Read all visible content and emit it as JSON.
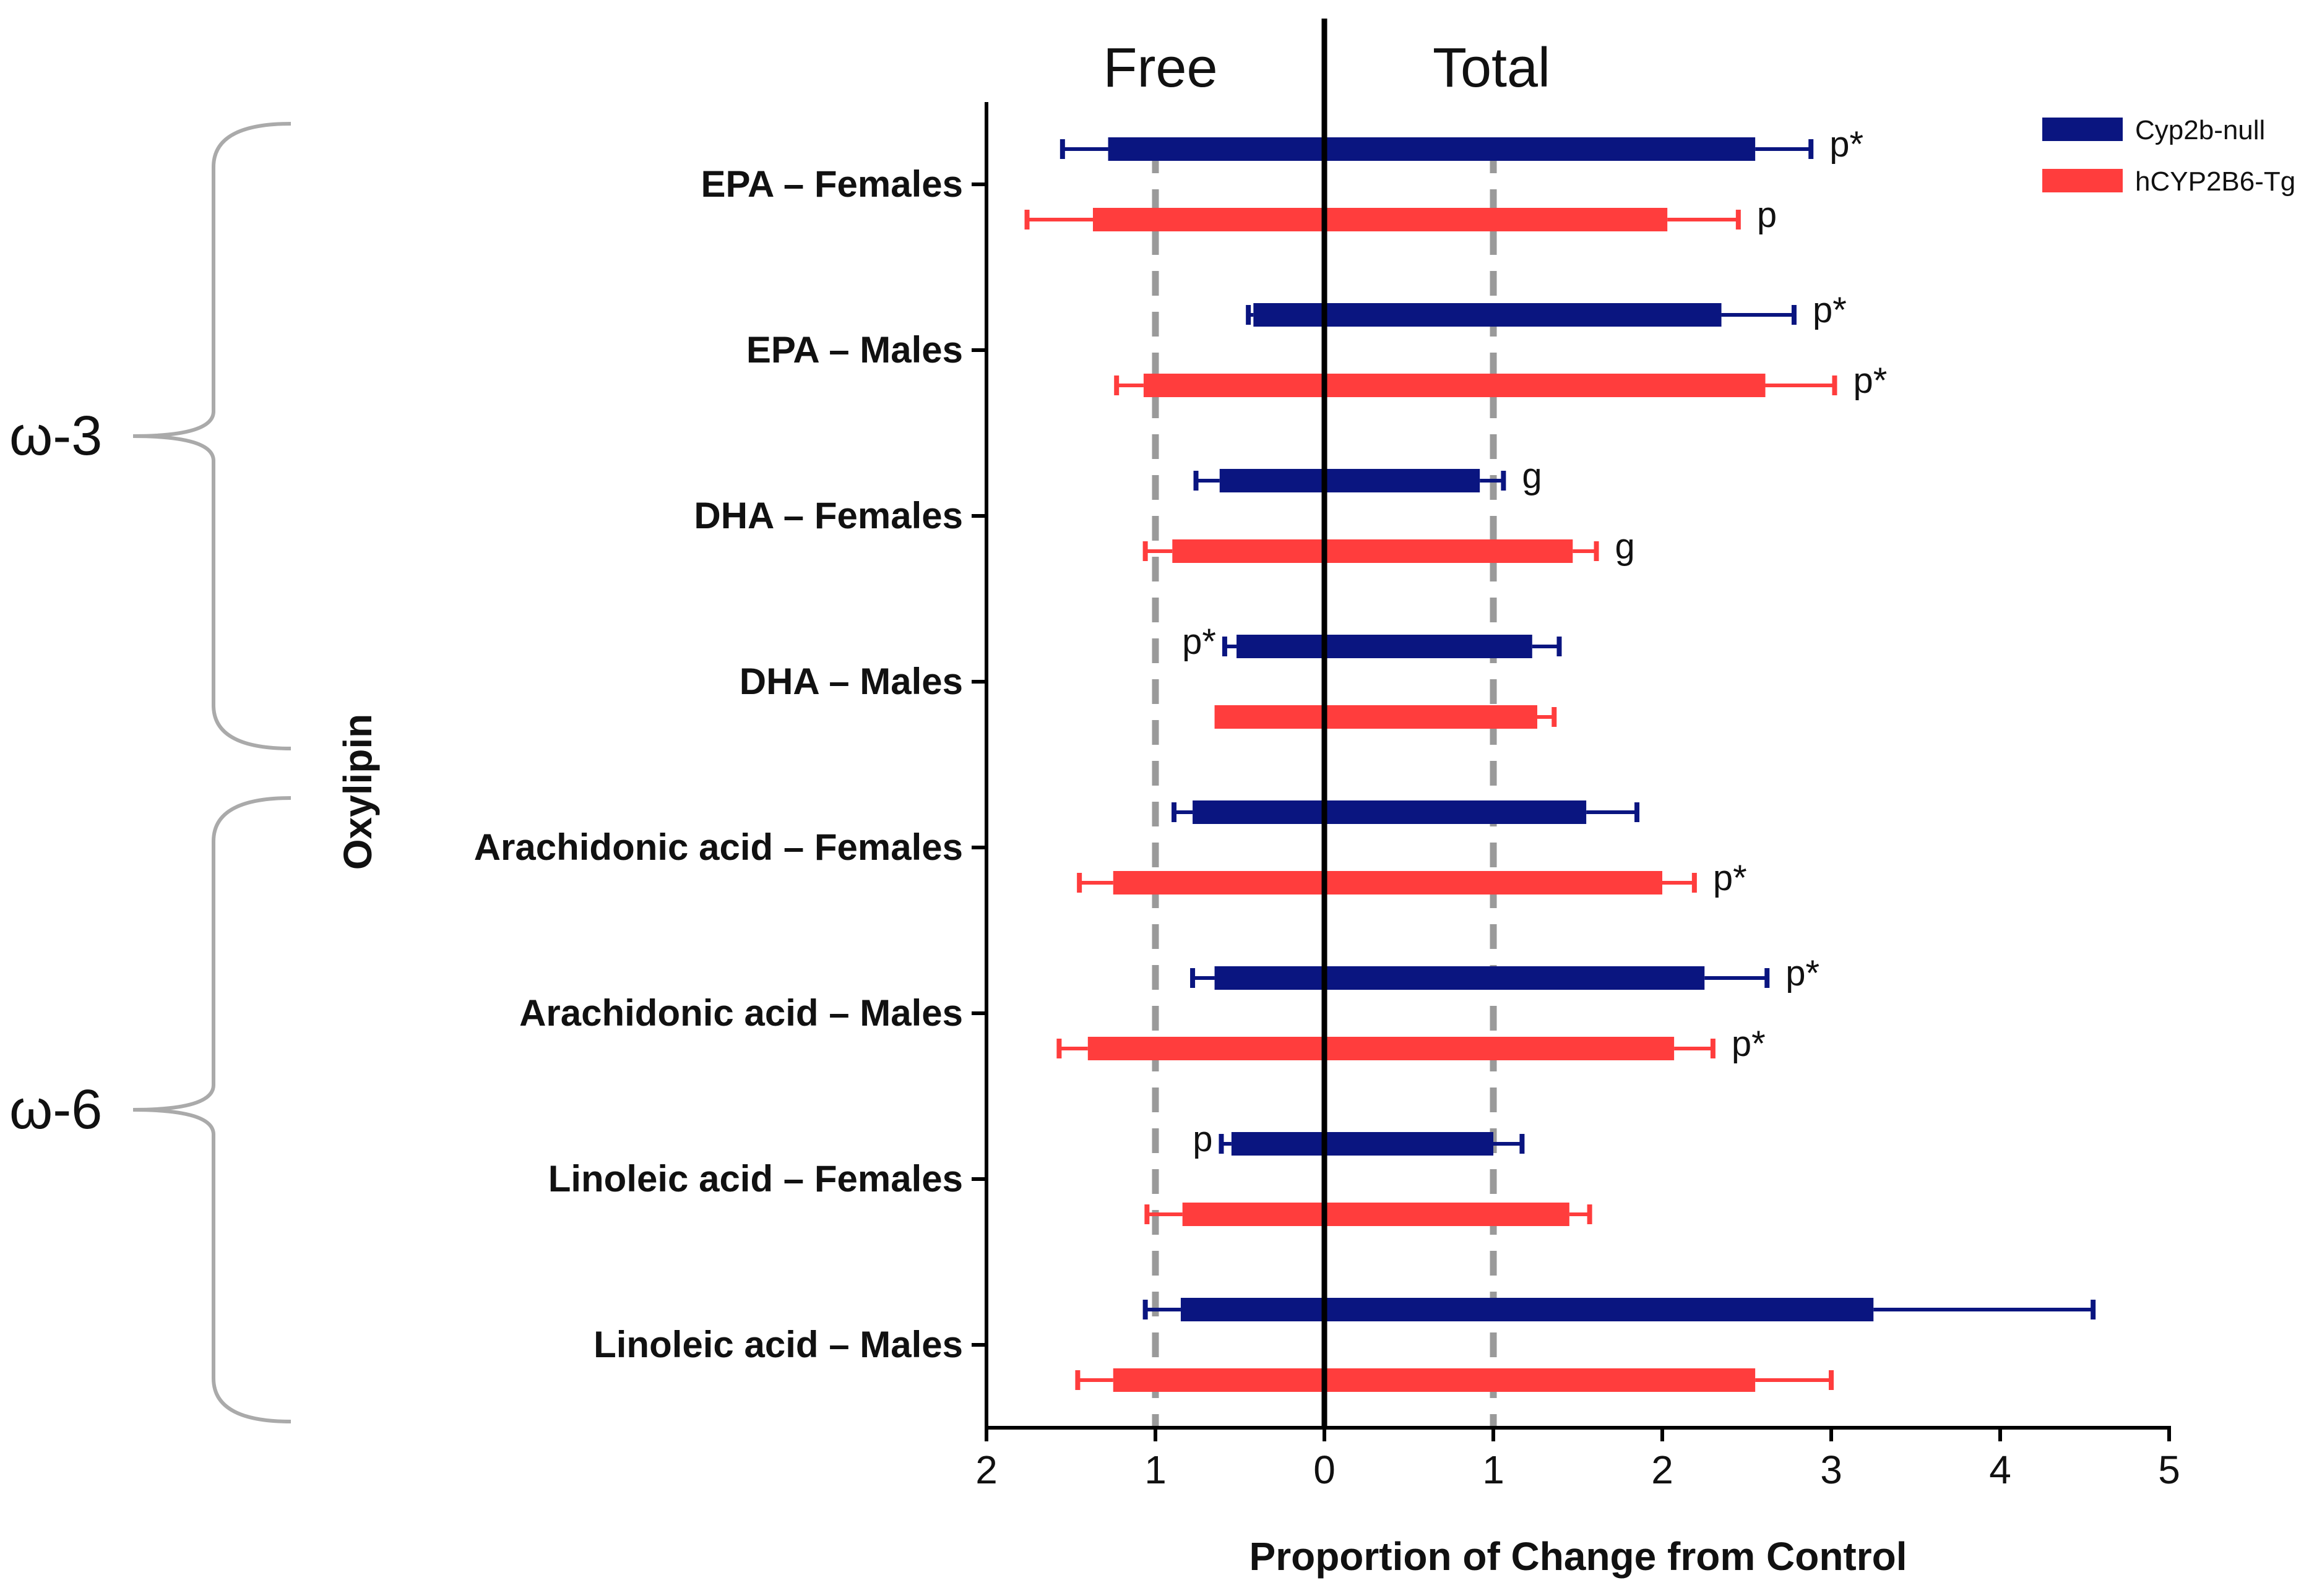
{
  "chart_data": {
    "type": "bar",
    "orientation": "horizontal",
    "diverging": true,
    "xlabel": "Proportion of Change from Control",
    "ylabel": "Oxylipin",
    "left_region_label": "Free",
    "right_region_label": "Total",
    "x_ticks_left": [
      "2",
      "1",
      "0"
    ],
    "x_ticks_right": [
      "1",
      "2",
      "3",
      "4",
      "5"
    ],
    "xlim_left": [
      0,
      2
    ],
    "xlim_right": [
      0,
      5
    ],
    "reference_lines": [
      1
    ],
    "categories": [
      "EPA – Females",
      "EPA – Males",
      "DHA – Females",
      "DHA – Males",
      "Arachidonic acid – Females",
      "Arachidonic acid – Males",
      "Linoleic acid – Females",
      "Linoleic acid – Males"
    ],
    "groups": [
      {
        "label": "ω-3",
        "categories": [
          "EPA – Females",
          "EPA – Males",
          "DHA – Females",
          "DHA – Males"
        ]
      },
      {
        "label": "ω-6",
        "categories": [
          "Arachidonic acid – Females",
          "Arachidonic acid – Males",
          "Linoleic acid – Females",
          "Linoleic acid – Males"
        ]
      }
    ],
    "series": [
      {
        "name": "Cyp2b-null",
        "color": "#0a1580",
        "free": [
          1.28,
          0.42,
          0.62,
          0.52,
          0.78,
          0.65,
          0.55,
          0.85
        ],
        "free_err": [
          0.27,
          0.03,
          0.14,
          0.07,
          0.11,
          0.13,
          0.06,
          0.21
        ],
        "total": [
          2.55,
          2.35,
          0.92,
          1.23,
          1.55,
          2.25,
          1.0,
          3.25
        ],
        "total_err": [
          0.33,
          0.43,
          0.14,
          0.16,
          0.3,
          0.37,
          0.17,
          1.3
        ],
        "annotations": [
          "p*",
          "p*",
          "g",
          "p*",
          "",
          "p*",
          "p",
          ""
        ],
        "annotation_side": [
          "right",
          "right",
          "right",
          "left",
          "right",
          "right",
          "left",
          "right"
        ]
      },
      {
        "name": "hCYP2B6-Tg",
        "color": "#ff3d3d",
        "free": [
          1.37,
          1.07,
          0.9,
          0.65,
          1.25,
          1.4,
          0.84,
          1.25
        ],
        "free_err": [
          0.39,
          0.16,
          0.16,
          0.0,
          0.2,
          0.17,
          0.21,
          0.21
        ],
        "total": [
          2.03,
          2.61,
          1.47,
          1.26,
          2.0,
          2.07,
          1.45,
          2.55
        ],
        "total_err": [
          0.42,
          0.41,
          0.14,
          0.1,
          0.19,
          0.23,
          0.12,
          0.45
        ],
        "annotations": [
          "p",
          "p*",
          "g",
          "",
          "p*",
          "p*",
          "",
          ""
        ],
        "annotation_side": [
          "right",
          "right",
          "right",
          "right",
          "right",
          "right",
          "right",
          "right"
        ]
      }
    ]
  }
}
